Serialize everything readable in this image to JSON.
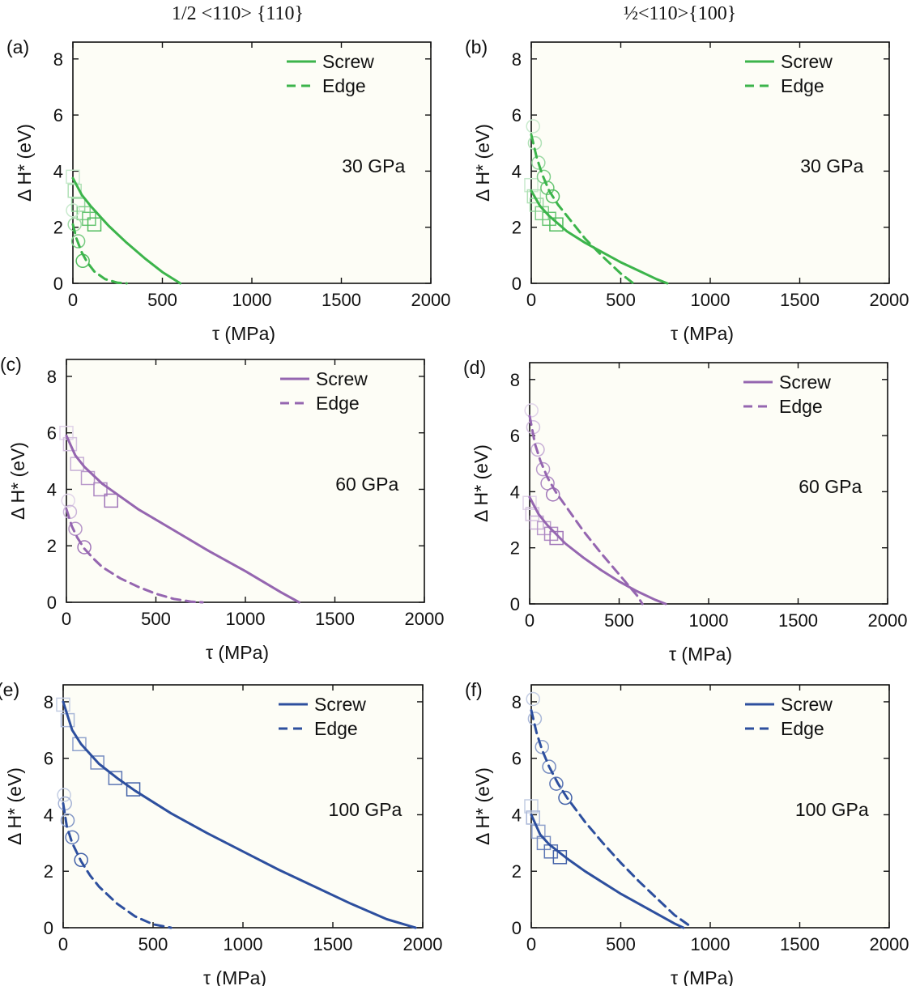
{
  "column_titles": [
    "1/2 <110> {110}",
    "½<110>{100}"
  ],
  "colors": {
    "30 GPa": "#3cb44b",
    "60 GPa": "#9566b0",
    "100 GPa": "#2d4f9e",
    "plot_bg": "#fdfdf6"
  },
  "chart_data": [
    {
      "panel": "(a)",
      "type": "line",
      "annotation": "30 GPa",
      "color_key": "30 GPa",
      "xlabel": "τ (MPa)",
      "ylabel": "Δ H* (eV)",
      "xlim": [
        0,
        2000
      ],
      "ylim": [
        0,
        8.6
      ],
      "xticks": [
        0,
        500,
        1000,
        1500,
        2000
      ],
      "yticks": [
        0,
        2,
        4,
        6,
        8
      ],
      "legend": "top-right",
      "series": [
        {
          "name": "Screw",
          "style": "solid",
          "x": [
            0,
            50,
            100,
            200,
            300,
            400,
            500,
            600
          ],
          "y": [
            3.75,
            3.15,
            2.75,
            2.05,
            1.45,
            0.9,
            0.4,
            0
          ]
        },
        {
          "name": "Edge",
          "style": "dashed",
          "x": [
            0,
            20,
            50,
            80,
            120,
            180,
            250,
            300
          ],
          "y": [
            2.1,
            1.6,
            1.1,
            0.75,
            0.42,
            0.15,
            0.02,
            0
          ]
        }
      ],
      "markers": [
        {
          "shape": "square",
          "x": [
            0,
            10,
            30,
            60,
            90,
            120
          ],
          "y": [
            3.8,
            3.3,
            2.8,
            2.5,
            2.3,
            2.1
          ]
        },
        {
          "shape": "circle",
          "x": [
            0,
            10,
            30,
            55
          ],
          "y": [
            2.6,
            2.1,
            1.5,
            0.8
          ]
        }
      ]
    },
    {
      "panel": "(b)",
      "type": "line",
      "annotation": "30 GPa",
      "color_key": "30 GPa",
      "xlabel": "τ (MPa)",
      "ylabel": "Δ H* (eV)",
      "xlim": [
        0,
        2000
      ],
      "ylim": [
        0,
        8.6
      ],
      "xticks": [
        0,
        500,
        1000,
        1500,
        2000
      ],
      "yticks": [
        0,
        2,
        4,
        6,
        8
      ],
      "legend": "top-right",
      "series": [
        {
          "name": "Screw",
          "style": "solid",
          "x": [
            0,
            50,
            100,
            200,
            300,
            400,
            500,
            600,
            700,
            760
          ],
          "y": [
            3.3,
            2.75,
            2.4,
            1.85,
            1.45,
            1.1,
            0.75,
            0.45,
            0.15,
            0
          ]
        },
        {
          "name": "Edge",
          "style": "dashed",
          "x": [
            0,
            30,
            60,
            100,
            150,
            200,
            300,
            400,
            500,
            570
          ],
          "y": [
            5.3,
            4.5,
            3.9,
            3.3,
            2.8,
            2.4,
            1.6,
            0.95,
            0.35,
            0
          ]
        }
      ],
      "markers": [
        {
          "shape": "square",
          "x": [
            0,
            15,
            30,
            60,
            100,
            140
          ],
          "y": [
            3.5,
            3.1,
            2.8,
            2.5,
            2.3,
            2.1
          ]
        },
        {
          "shape": "circle",
          "x": [
            10,
            20,
            40,
            70,
            90,
            120
          ],
          "y": [
            5.6,
            5.0,
            4.3,
            3.8,
            3.4,
            3.1
          ]
        }
      ]
    },
    {
      "panel": "(c)",
      "type": "line",
      "annotation": "60 GPa",
      "color_key": "60 GPa",
      "xlabel": "τ (MPa)",
      "ylabel": "Δ H* (eV)",
      "xlim": [
        0,
        2000
      ],
      "ylim": [
        0,
        8.6
      ],
      "xticks": [
        0,
        500,
        1000,
        1500,
        2000
      ],
      "yticks": [
        0,
        2,
        4,
        6,
        8
      ],
      "legend": "top-right",
      "series": [
        {
          "name": "Screw",
          "style": "solid",
          "x": [
            0,
            50,
            100,
            200,
            300,
            400,
            600,
            800,
            1000,
            1200,
            1300
          ],
          "y": [
            5.9,
            5.2,
            4.8,
            4.2,
            3.75,
            3.3,
            2.55,
            1.8,
            1.1,
            0.35,
            0
          ]
        },
        {
          "name": "Edge",
          "style": "dashed",
          "x": [
            0,
            30,
            60,
            100,
            150,
            200,
            300,
            400,
            500,
            600,
            700,
            760
          ],
          "y": [
            3.3,
            2.7,
            2.3,
            1.9,
            1.55,
            1.25,
            0.85,
            0.55,
            0.3,
            0.12,
            0.02,
            0
          ]
        }
      ],
      "markers": [
        {
          "shape": "square",
          "x": [
            0,
            20,
            60,
            120,
            190,
            250
          ],
          "y": [
            6.0,
            5.6,
            4.9,
            4.4,
            4.0,
            3.6
          ]
        },
        {
          "shape": "circle",
          "x": [
            10,
            20,
            50,
            100
          ],
          "y": [
            3.6,
            3.2,
            2.6,
            1.95
          ]
        }
      ]
    },
    {
      "panel": "(d)",
      "type": "line",
      "annotation": "60 GPa",
      "color_key": "60 GPa",
      "xlabel": "τ (MPa)",
      "ylabel": "Δ H* (eV)",
      "xlim": [
        0,
        2000
      ],
      "ylim": [
        0,
        8.6
      ],
      "xticks": [
        0,
        500,
        1000,
        1500,
        2000
      ],
      "yticks": [
        0,
        2,
        4,
        6,
        8
      ],
      "legend": "top-right",
      "series": [
        {
          "name": "Screw",
          "style": "solid",
          "x": [
            0,
            50,
            100,
            200,
            300,
            400,
            500,
            600,
            700,
            760
          ],
          "y": [
            3.8,
            3.2,
            2.8,
            2.15,
            1.65,
            1.2,
            0.8,
            0.45,
            0.15,
            0
          ]
        },
        {
          "name": "Edge",
          "style": "dashed",
          "x": [
            0,
            30,
            60,
            100,
            150,
            200,
            300,
            400,
            500,
            600,
            630
          ],
          "y": [
            6.7,
            5.7,
            5.1,
            4.5,
            3.95,
            3.5,
            2.6,
            1.8,
            1.05,
            0.3,
            0
          ]
        }
      ],
      "markers": [
        {
          "shape": "square",
          "x": [
            0,
            15,
            40,
            80,
            120,
            150
          ],
          "y": [
            3.6,
            3.2,
            2.9,
            2.7,
            2.5,
            2.35
          ]
        },
        {
          "shape": "circle",
          "x": [
            10,
            20,
            45,
            75,
            100,
            130
          ],
          "y": [
            6.9,
            6.3,
            5.5,
            4.8,
            4.3,
            3.9
          ]
        }
      ]
    },
    {
      "panel": "(e)",
      "type": "line",
      "annotation": "100 GPa",
      "color_key": "100 GPa",
      "xlabel": "τ (MPa)",
      "ylabel": "Δ H* (eV)",
      "xlim": [
        0,
        2000
      ],
      "ylim": [
        0,
        8.6
      ],
      "xticks": [
        0,
        500,
        1000,
        1500,
        2000
      ],
      "yticks": [
        0,
        2,
        4,
        6,
        8
      ],
      "legend": "top-right",
      "series": [
        {
          "name": "Screw",
          "style": "solid",
          "x": [
            0,
            50,
            100,
            200,
            300,
            400,
            600,
            800,
            1000,
            1200,
            1400,
            1600,
            1800,
            1960
          ],
          "y": [
            8.0,
            7.0,
            6.5,
            5.8,
            5.3,
            4.85,
            4.05,
            3.35,
            2.7,
            2.05,
            1.45,
            0.85,
            0.3,
            0
          ]
        },
        {
          "name": "Edge",
          "style": "dashed",
          "x": [
            0,
            20,
            50,
            100,
            150,
            200,
            300,
            400,
            500,
            600
          ],
          "y": [
            4.4,
            3.6,
            3.0,
            2.35,
            1.85,
            1.45,
            0.85,
            0.4,
            0.12,
            0
          ]
        }
      ],
      "markers": [
        {
          "shape": "square",
          "x": [
            0,
            25,
            90,
            190,
            290,
            390
          ],
          "y": [
            7.9,
            7.35,
            6.5,
            5.85,
            5.3,
            4.9
          ]
        },
        {
          "shape": "circle",
          "x": [
            5,
            10,
            25,
            50,
            100
          ],
          "y": [
            4.7,
            4.4,
            3.8,
            3.2,
            2.4
          ]
        }
      ]
    },
    {
      "panel": "(f)",
      "type": "line",
      "annotation": "100 GPa",
      "color_key": "100 GPa",
      "xlabel": "τ (MPa)",
      "ylabel": "Δ H* (eV)",
      "xlim": [
        0,
        2000
      ],
      "ylim": [
        0,
        8.6
      ],
      "xticks": [
        0,
        500,
        1000,
        1500,
        2000
      ],
      "yticks": [
        0,
        2,
        4,
        6,
        8
      ],
      "legend": "top-right",
      "series": [
        {
          "name": "Screw",
          "style": "solid",
          "x": [
            0,
            50,
            100,
            200,
            300,
            400,
            500,
            600,
            700,
            800,
            850
          ],
          "y": [
            4.0,
            3.3,
            2.95,
            2.45,
            2.0,
            1.6,
            1.2,
            0.85,
            0.5,
            0.15,
            0
          ]
        },
        {
          "name": "Edge",
          "style": "dashed",
          "x": [
            0,
            30,
            60,
            100,
            150,
            200,
            300,
            400,
            500,
            600,
            700,
            800,
            900
          ],
          "y": [
            7.7,
            6.9,
            6.3,
            5.7,
            5.1,
            4.6,
            3.75,
            3.0,
            2.3,
            1.65,
            1.05,
            0.45,
            0
          ]
        }
      ],
      "markers": [
        {
          "shape": "square",
          "x": [
            0,
            10,
            40,
            70,
            110,
            160
          ],
          "y": [
            4.3,
            3.9,
            3.4,
            3.0,
            2.7,
            2.5
          ]
        },
        {
          "shape": "circle",
          "x": [
            10,
            20,
            60,
            100,
            140,
            190
          ],
          "y": [
            8.1,
            7.4,
            6.4,
            5.7,
            5.1,
            4.6
          ]
        }
      ]
    }
  ]
}
